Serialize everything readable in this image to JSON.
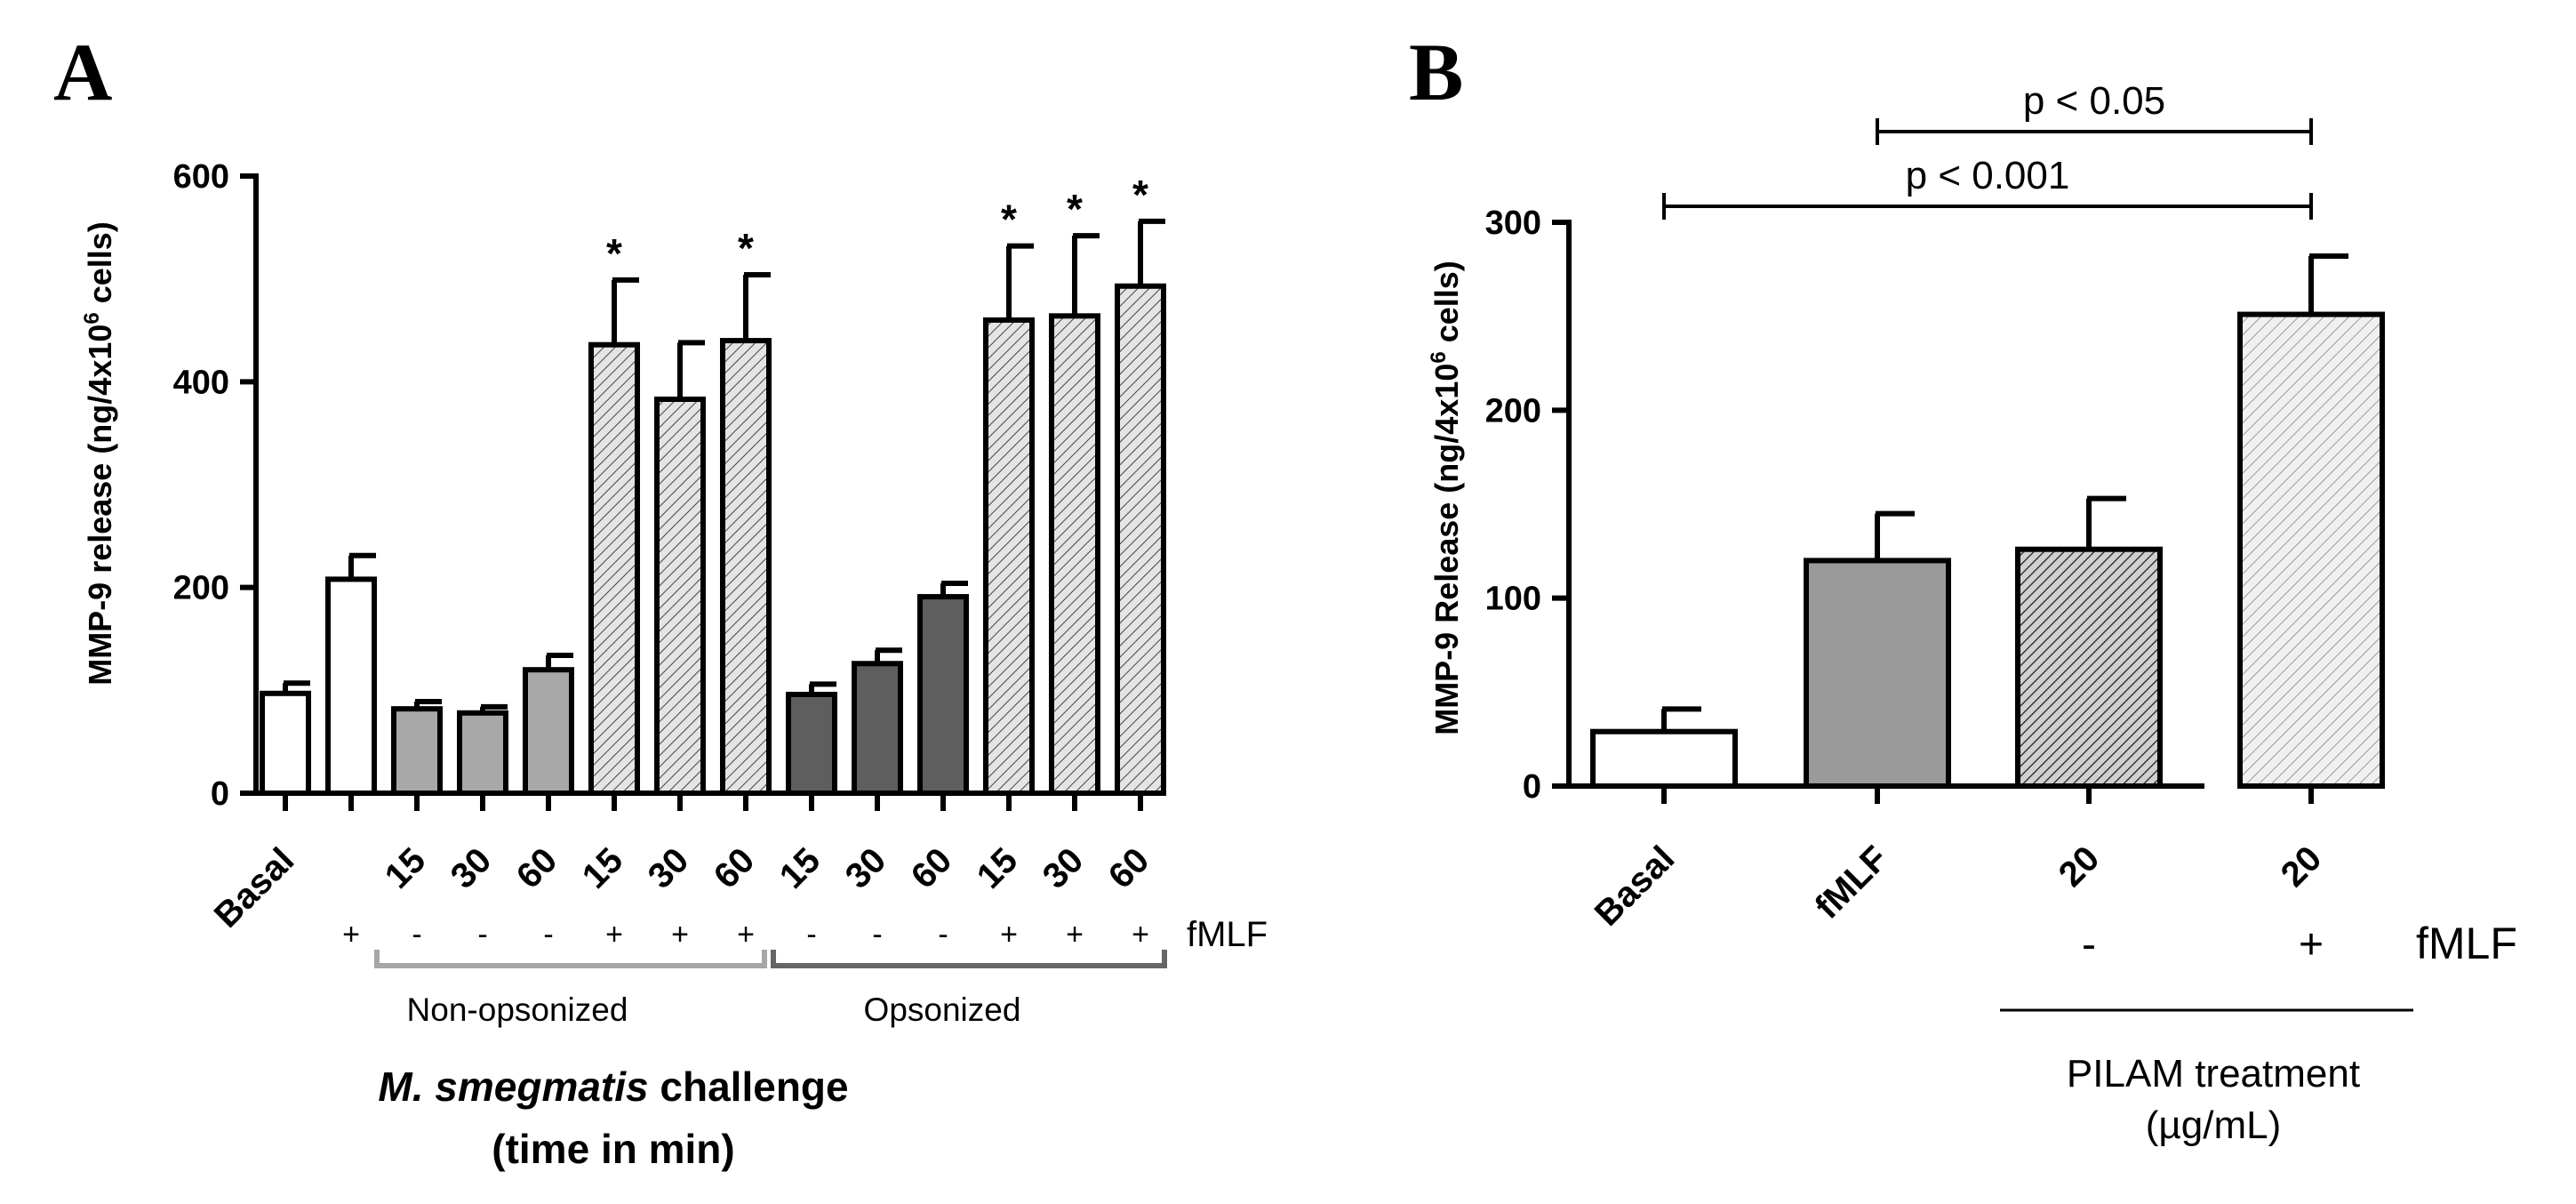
{
  "chart_data": [
    {
      "panel": "A",
      "type": "bar",
      "ylabel": "MMP-9 release (ng/4x10",
      "ylabel_sup": "6",
      "ylabel_end": " cells)",
      "ylim": [
        0,
        600
      ],
      "yticks": [
        "0",
        "200",
        "400",
        "600"
      ],
      "basal_label": "Basal",
      "categories": [
        "Basal",
        "",
        "15",
        "30",
        "60",
        "15",
        "30",
        "60",
        "15",
        "30",
        "60",
        "15",
        "30",
        "60"
      ],
      "values": [
        97,
        208,
        82,
        78,
        120,
        436,
        383,
        440,
        96,
        126,
        191,
        460,
        464,
        493
      ],
      "errors": [
        10,
        23,
        7,
        6,
        14,
        63,
        55,
        64,
        10,
        13,
        13,
        72,
        78,
        63
      ],
      "fills": [
        "white",
        "white",
        "lightgray",
        "lightgray",
        "lightgray",
        "hatch",
        "hatch",
        "hatch",
        "darkgray",
        "darkgray",
        "darkgray",
        "hatch",
        "hatch",
        "hatch"
      ],
      "significance": [
        "",
        "",
        "",
        "",
        "",
        "*",
        "",
        "*",
        "",
        "",
        "",
        "*",
        "*",
        "*"
      ],
      "fmlf_signs": [
        "",
        "+",
        "-",
        "-",
        "-",
        "+",
        "+",
        "+",
        "-",
        "-",
        "-",
        "+",
        "+",
        "+"
      ],
      "fmlf_label": "fMLF",
      "groups": [
        {
          "label": "Non-opsonized"
        },
        {
          "label": "Opsonized"
        }
      ],
      "xlabel_species": "M. smegmatis",
      "xlabel_rest": " challenge",
      "xlabel_line2": "(time in min)"
    },
    {
      "panel": "B",
      "type": "bar",
      "ylabel": "MMP-9 Release (ng/4x10",
      "ylabel_sup": "6",
      "ylabel_end": " cells)",
      "ylim": [
        0,
        300
      ],
      "yticks": [
        "0",
        "100",
        "200",
        "300"
      ],
      "categories": [
        "Basal",
        "fMLF",
        "20",
        "20"
      ],
      "values": [
        29,
        120,
        126,
        251
      ],
      "errors": [
        12,
        25,
        27,
        31
      ],
      "fills": [
        "white",
        "gray",
        "hatchdark",
        "hatchlight"
      ],
      "fmlf_signs": [
        "",
        "",
        "-",
        "+"
      ],
      "fmlf_label": "fMLF",
      "treatment_label_line1": "PILAM treatment",
      "treatment_label_line2": "(µg/mL)",
      "comparisons": [
        {
          "label": "p < 0.05",
          "from": 1,
          "to": 3
        },
        {
          "label": "p < 0.001",
          "from": 0,
          "to": 3
        }
      ]
    }
  ],
  "panel_labels": [
    "A",
    "B"
  ]
}
